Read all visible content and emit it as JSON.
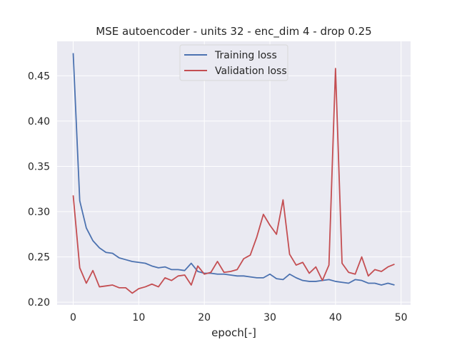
{
  "chart_data": {
    "type": "line",
    "title": "MSE autoencoder - units 32 - enc_dim 4 - drop 0.25",
    "xlabel": "epoch[-]",
    "ylabel": "",
    "xlim": [
      -2.45,
      51.45
    ],
    "ylim": [
      0.197,
      0.488
    ],
    "xticks": [
      0,
      10,
      20,
      30,
      40,
      50
    ],
    "yticks": [
      0.2,
      0.25,
      0.3,
      0.35,
      0.4,
      0.45
    ],
    "ytick_labels": [
      "0.20",
      "0.25",
      "0.30",
      "0.35",
      "0.40",
      "0.45"
    ],
    "grid": true,
    "legend_position": "top-center",
    "colors": {
      "background": "#eaeaf2",
      "grid": "#ffffff"
    },
    "x": [
      0,
      1,
      2,
      3,
      4,
      5,
      6,
      7,
      8,
      9,
      10,
      11,
      12,
      13,
      14,
      15,
      16,
      17,
      18,
      19,
      20,
      21,
      22,
      23,
      24,
      25,
      26,
      27,
      28,
      29,
      30,
      31,
      32,
      33,
      34,
      35,
      36,
      37,
      38,
      39,
      40,
      41,
      42,
      43,
      44,
      45,
      46,
      47,
      48,
      49
    ],
    "series": [
      {
        "name": "Training loss",
        "color": "#4c72b0",
        "values": [
          0.475,
          0.312,
          0.282,
          0.268,
          0.26,
          0.255,
          0.254,
          0.249,
          0.247,
          0.245,
          0.244,
          0.243,
          0.24,
          0.238,
          0.239,
          0.236,
          0.236,
          0.235,
          0.243,
          0.234,
          0.232,
          0.232,
          0.231,
          0.231,
          0.23,
          0.229,
          0.229,
          0.228,
          0.227,
          0.227,
          0.231,
          0.226,
          0.225,
          0.231,
          0.227,
          0.224,
          0.223,
          0.223,
          0.224,
          0.225,
          0.223,
          0.222,
          0.221,
          0.225,
          0.224,
          0.221,
          0.221,
          0.219,
          0.221,
          0.219
        ]
      },
      {
        "name": "Validation loss",
        "color": "#c44e52",
        "values": [
          0.318,
          0.238,
          0.221,
          0.235,
          0.217,
          0.218,
          0.219,
          0.216,
          0.216,
          0.21,
          0.215,
          0.217,
          0.22,
          0.217,
          0.227,
          0.224,
          0.229,
          0.23,
          0.219,
          0.24,
          0.231,
          0.233,
          0.245,
          0.233,
          0.234,
          0.236,
          0.248,
          0.252,
          0.272,
          0.297,
          0.285,
          0.275,
          0.313,
          0.253,
          0.241,
          0.244,
          0.232,
          0.239,
          0.224,
          0.241,
          0.458,
          0.243,
          0.233,
          0.231,
          0.25,
          0.229,
          0.236,
          0.234,
          0.239,
          0.242
        ]
      }
    ]
  }
}
